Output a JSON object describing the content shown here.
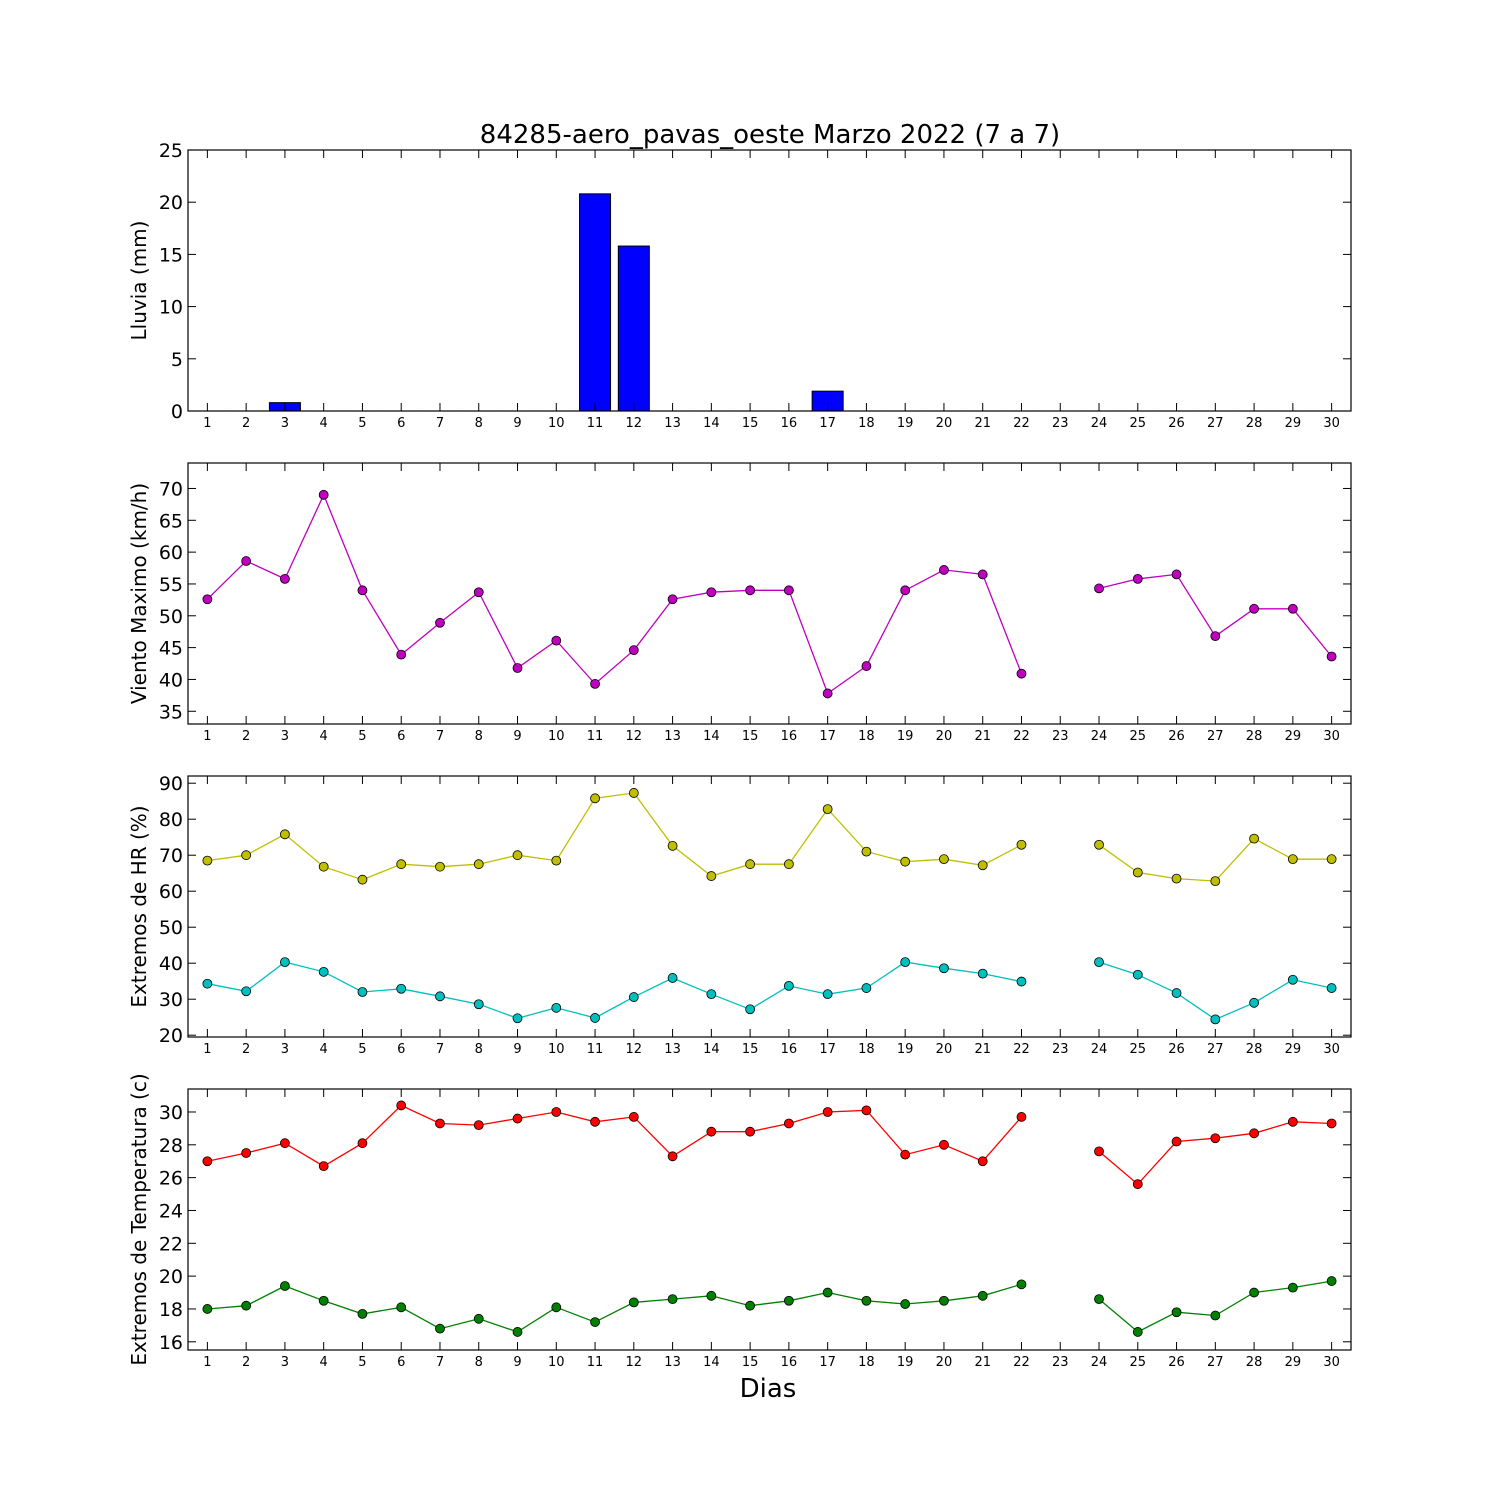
{
  "chart_data": {
    "title": "84285-aero_pavas_oeste Marzo 2022  (7 a 7)",
    "xlabel": "Dias",
    "x": [
      1,
      2,
      3,
      4,
      5,
      6,
      7,
      8,
      9,
      10,
      11,
      12,
      13,
      14,
      15,
      16,
      17,
      18,
      19,
      20,
      21,
      22,
      23,
      24,
      25,
      26,
      27,
      28,
      29,
      30
    ],
    "x_tick_labels": [
      "1",
      "2",
      "3",
      "4",
      "5",
      "6",
      "7",
      "8",
      "9",
      "10",
      "11",
      "12",
      "13",
      "14",
      "15",
      "16",
      "17",
      "18",
      "19",
      "20",
      "21",
      "22",
      "23",
      "24",
      "25",
      "26",
      "27",
      "28",
      "29",
      "30"
    ],
    "xlim": [
      0.5,
      30.5
    ],
    "panels": [
      {
        "type": "bar",
        "ylabel": "Lluvia (mm)",
        "ylim": [
          0,
          25
        ],
        "yticks": [
          0,
          5,
          10,
          15,
          20,
          25
        ],
        "series": [
          {
            "color": "#0000ff",
            "values": [
              0,
              0,
              0.8,
              0,
              0,
              0,
              0,
              0,
              0,
              0,
              20.8,
              15.8,
              0,
              0,
              0,
              0,
              1.9,
              0,
              0,
              0,
              0,
              0,
              null,
              0,
              0,
              0,
              0,
              0,
              0,
              0
            ]
          }
        ]
      },
      {
        "type": "line",
        "ylabel": "Viento Maximo (km/h)",
        "ylim": [
          33,
          74
        ],
        "yticks": [
          35,
          40,
          45,
          50,
          55,
          60,
          65,
          70
        ],
        "series": [
          {
            "color": "#bf00bf",
            "values": [
              52.6,
              58.6,
              55.8,
              69.0,
              54.0,
              43.9,
              48.9,
              53.7,
              41.8,
              46.1,
              39.3,
              44.6,
              52.6,
              53.7,
              54.0,
              54.0,
              37.8,
              42.1,
              54.0,
              57.2,
              56.5,
              40.9,
              null,
              54.3,
              55.8,
              56.5,
              46.8,
              51.1,
              51.1,
              43.6
            ]
          }
        ]
      },
      {
        "type": "line",
        "ylabel": "Extremos de HR (%)",
        "ylim": [
          19.5,
          92
        ],
        "yticks": [
          20,
          30,
          40,
          50,
          60,
          70,
          80,
          90
        ],
        "series": [
          {
            "color": "#bfbf00",
            "values": [
              68.5,
              70,
              75.8,
              66.8,
              63.2,
              67.5,
              66.8,
              67.5,
              70,
              68.5,
              85.8,
              87.3,
              72.6,
              64.2,
              67.5,
              67.5,
              82.8,
              71,
              68.2,
              68.9,
              67.2,
              72.9,
              null,
              72.9,
              65.2,
              63.5,
              62.8,
              74.6,
              68.9,
              68.9
            ]
          },
          {
            "color": "#00bfbf",
            "values": [
              34.3,
              32.2,
              40.3,
              37.6,
              32,
              32.9,
              30.8,
              28.6,
              24.7,
              27.6,
              24.8,
              30.6,
              35.9,
              31.4,
              27.2,
              33.7,
              31.4,
              33.1,
              40.3,
              38.6,
              37.1,
              34.9,
              null,
              40.3,
              36.8,
              31.7,
              24.4,
              29,
              35.4,
              33.1
            ]
          }
        ]
      },
      {
        "type": "line",
        "ylabel": "Extremos de Temperatura (c)",
        "ylim": [
          15.5,
          31.4
        ],
        "yticks": [
          16,
          18,
          20,
          22,
          24,
          26,
          28,
          30
        ],
        "series": [
          {
            "color": "#ff0000",
            "values": [
              27,
              27.5,
              28.1,
              26.7,
              28.1,
              30.4,
              29.3,
              29.2,
              29.6,
              30,
              29.4,
              29.7,
              27.3,
              28.8,
              28.8,
              29.3,
              30,
              30.1,
              27.4,
              28,
              27,
              29.7,
              null,
              27.6,
              25.6,
              28.2,
              28.4,
              28.7,
              29.4,
              29.3
            ]
          },
          {
            "color": "#008000",
            "values": [
              18,
              18.2,
              19.4,
              18.5,
              17.7,
              18.1,
              16.8,
              17.4,
              16.6,
              18.1,
              17.2,
              18.4,
              18.6,
              18.8,
              18.2,
              18.5,
              19,
              18.5,
              18.3,
              18.5,
              18.8,
              19.5,
              null,
              18.6,
              16.6,
              17.8,
              17.6,
              19,
              19.3,
              19.7
            ]
          }
        ]
      }
    ]
  }
}
